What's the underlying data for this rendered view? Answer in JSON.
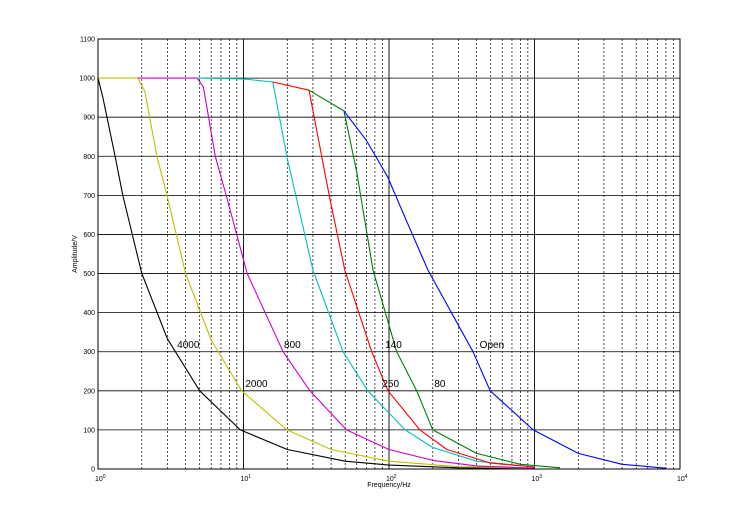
{
  "chart_data": {
    "type": "line",
    "title": "",
    "xlabel": "Frequency/Hz",
    "ylabel": "Amplitude/V",
    "xscale": "log",
    "xlim": [
      1,
      10000
    ],
    "ylim": [
      0,
      1100
    ],
    "x_ticks": [
      {
        "base": "10",
        "exp": "0"
      },
      {
        "base": "10",
        "exp": "1"
      },
      {
        "base": "10",
        "exp": "2"
      },
      {
        "base": "10",
        "exp": "3"
      },
      {
        "base": "10",
        "exp": "4"
      }
    ],
    "y_ticks": [
      "0",
      "100",
      "200",
      "300",
      "400",
      "500",
      "600",
      "700",
      "800",
      "900",
      "1000",
      "1100"
    ],
    "grid": true,
    "series": [
      {
        "color": "#000000",
        "points": [
          [
            1,
            1000
          ],
          [
            1.08,
            950
          ],
          [
            1.31,
            800
          ],
          [
            1.48,
            700
          ],
          [
            2,
            500
          ],
          [
            3,
            333
          ],
          [
            5,
            200
          ],
          [
            9.5,
            100
          ],
          [
            20,
            50
          ],
          [
            50,
            20
          ],
          [
            100,
            10
          ],
          [
            300,
            3
          ],
          [
            1000,
            1
          ]
        ]
      },
      {
        "color": "#c0c000",
        "points": [
          [
            1,
            1000
          ],
          [
            1.88,
            1000
          ],
          [
            2.1,
            965
          ],
          [
            2.54,
            800
          ],
          [
            2.98,
            700
          ],
          [
            4,
            500
          ],
          [
            6,
            330
          ],
          [
            9.7,
            200
          ],
          [
            19.9,
            100
          ],
          [
            40,
            50
          ],
          [
            100,
            20
          ],
          [
            300,
            6
          ],
          [
            1000,
            2
          ]
        ]
      },
      {
        "color": "#cc00cc",
        "points": [
          [
            1.88,
            1000
          ],
          [
            4.8,
            1000
          ],
          [
            5.3,
            977
          ],
          [
            6.4,
            800
          ],
          [
            7.6,
            700
          ],
          [
            10.6,
            500
          ],
          [
            18.7,
            300
          ],
          [
            28.6,
            200
          ],
          [
            51,
            100
          ],
          [
            100,
            50
          ],
          [
            200,
            22
          ],
          [
            400,
            8
          ],
          [
            1000,
            2
          ]
        ]
      },
      {
        "color": "#00c0c0",
        "points": [
          [
            4.8,
            1000
          ],
          [
            10,
            998
          ],
          [
            15.9,
            990
          ],
          [
            19.9,
            798
          ],
          [
            30,
            509
          ],
          [
            48.3,
            300
          ],
          [
            71.5,
            200
          ],
          [
            129,
            100
          ],
          [
            200,
            55
          ],
          [
            400,
            20
          ],
          [
            1000,
            5
          ]
        ]
      },
      {
        "color": "#ff0000",
        "points": [
          [
            15.9,
            990
          ],
          [
            28.2,
            969
          ],
          [
            39,
            696
          ],
          [
            49.7,
            509
          ],
          [
            76,
            300
          ],
          [
            98.5,
            200
          ],
          [
            163,
            100
          ],
          [
            250,
            50
          ],
          [
            500,
            15
          ],
          [
            1000,
            5
          ]
        ]
      },
      {
        "color": "#008000",
        "points": [
          [
            28.2,
            969
          ],
          [
            49,
            916
          ],
          [
            60,
            760
          ],
          [
            77.6,
            509
          ],
          [
            113,
            300
          ],
          [
            155,
            200
          ],
          [
            200,
            100
          ],
          [
            400,
            40
          ],
          [
            800,
            12
          ],
          [
            1500,
            3
          ]
        ]
      },
      {
        "color": "#0000ff",
        "points": [
          [
            49,
            916
          ],
          [
            70,
            840
          ],
          [
            98,
            747
          ],
          [
            130,
            640
          ],
          [
            185,
            509
          ],
          [
            378,
            300
          ],
          [
            496,
            200
          ],
          [
            980,
            100
          ],
          [
            2000,
            40
          ],
          [
            4000,
            12
          ],
          [
            8000,
            2
          ]
        ]
      }
    ],
    "annotations": [
      {
        "text": "4000",
        "x": 3.5,
        "y": 310
      },
      {
        "text": "800",
        "x": 19,
        "y": 310
      },
      {
        "text": "140",
        "x": 94,
        "y": 310
      },
      {
        "text": "Open",
        "x": 420,
        "y": 310
      },
      {
        "text": "2000",
        "x": 10.3,
        "y": 210
      },
      {
        "text": "250",
        "x": 90,
        "y": 210
      },
      {
        "text": "80",
        "x": 205,
        "y": 210
      }
    ]
  }
}
